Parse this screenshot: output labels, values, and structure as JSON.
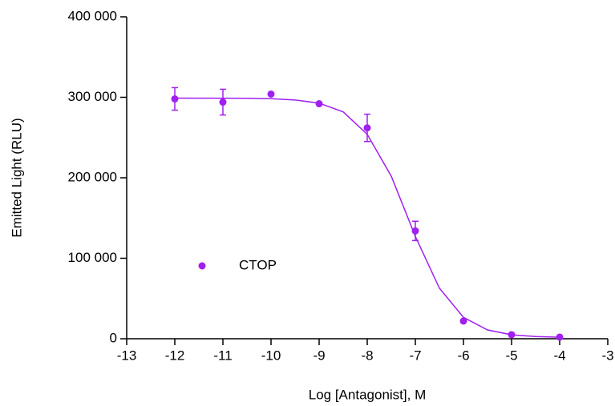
{
  "chart_data": {
    "type": "scatter",
    "x_label": "Log [Antagonist], M",
    "y_label": "Emitted Light (RLU)",
    "series": [
      {
        "name": "CTOP",
        "color": "#a020f0",
        "x": [
          -12,
          -11,
          -10,
          -9,
          -8,
          -7,
          -6,
          -5,
          -4
        ],
        "values": [
          298000,
          294000,
          304000,
          292000,
          262000,
          134000,
          22000,
          5000,
          2000
        ],
        "errors": [
          14000,
          16000,
          null,
          null,
          17000,
          12000,
          null,
          null,
          null
        ]
      },
      {
        "type": "line",
        "color": "#a020f0",
        "x": [
          -12,
          -11,
          -10.5,
          -10,
          -9.5,
          -9,
          -8.5,
          -8,
          -7.5,
          -7,
          -6.5,
          -6,
          -5.5,
          -5,
          -4.5,
          -4
        ],
        "values": [
          299000,
          298900,
          298700,
          298200,
          296700,
          292700,
          281900,
          254000,
          201900,
          127200,
          62800,
          26600,
          10900,
          4900,
          2700,
          1900
        ]
      }
    ],
    "xlim": [
      -13,
      -3
    ],
    "xticks": [
      -13,
      -12,
      -11,
      -10,
      -9,
      -8,
      -7,
      -6,
      -5,
      -4,
      -3
    ],
    "ylim": [
      0,
      400000
    ],
    "yticks": [
      0,
      {
        "value": 100000,
        "label": "100 000"
      },
      {
        "value": 200000,
        "label": "200 000"
      },
      {
        "value": 300000,
        "label": "300 000"
      },
      {
        "value": 400000,
        "label": "400 000"
      }
    ],
    "legend_position": "center-left"
  }
}
